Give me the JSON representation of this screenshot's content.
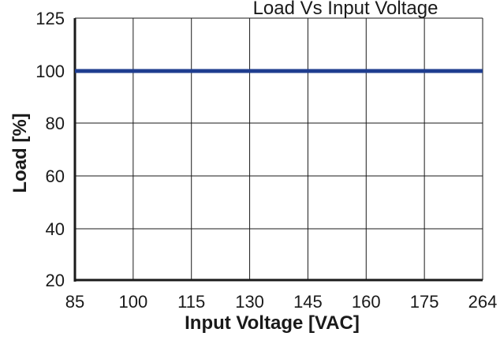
{
  "chart_data": {
    "type": "line",
    "title": "",
    "top_title_fragment": "Load Vs Input Voltage",
    "xlabel": "Input Voltage [VAC]",
    "ylabel": "Load  [%]",
    "x_tick_labels": [
      "85",
      "100",
      "115",
      "130",
      "145",
      "160",
      "175",
      "264"
    ],
    "y_ticks": [
      20,
      40,
      60,
      80,
      100,
      125
    ],
    "y_tick_labels": [
      "20",
      "40",
      "60",
      "80",
      "100",
      "125"
    ],
    "ylim": [
      20,
      125
    ],
    "grid": true,
    "series": [
      {
        "x": [
          "85",
          "100",
          "115",
          "130",
          "145",
          "160",
          "175",
          "264"
        ],
        "values": [
          100,
          100,
          100,
          100,
          100,
          100,
          100,
          100
        ],
        "color": "#1f3d8f"
      }
    ]
  }
}
